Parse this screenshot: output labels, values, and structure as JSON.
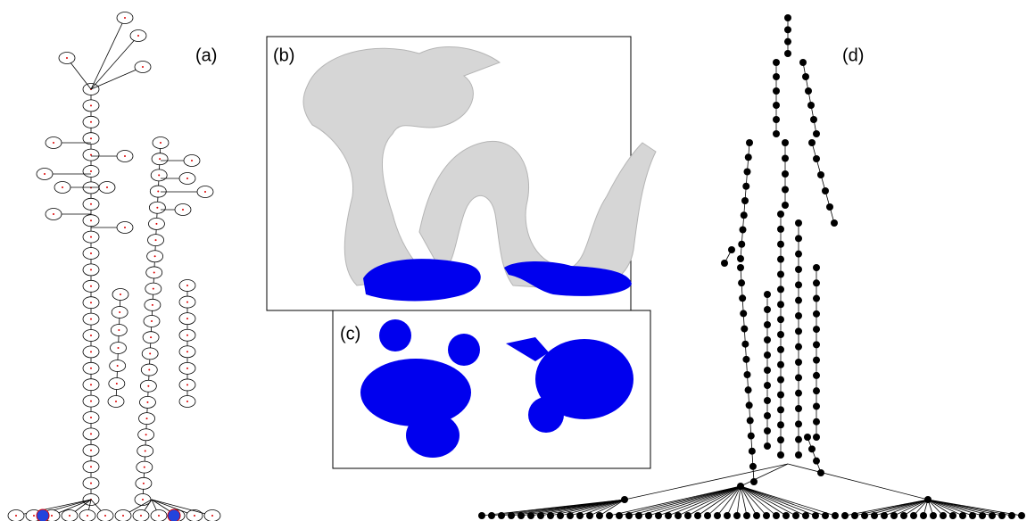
{
  "panels": {
    "a": {
      "label": "(a)"
    },
    "b": {
      "label": "(b)"
    },
    "c": {
      "label": "(c)"
    },
    "d": {
      "label": "(d)"
    }
  }
}
